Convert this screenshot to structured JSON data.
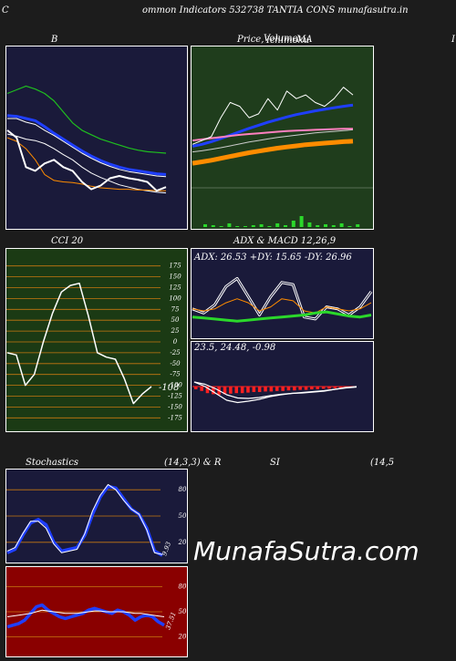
{
  "header": {
    "left_letter": "C",
    "title": "ommon  Indicators 532738  TANTIA CONS munafasutra.in"
  },
  "titles": {
    "bollinger": "B",
    "price_left": "Price, ",
    "price_overlap_a": "Volume",
    "price_overlap_b": "Ichimoku",
    "price_right": "  MA",
    "price_edge": "I",
    "cci": "CCI 20",
    "adx_macd": "ADX  & MACD 12,26,9",
    "stoch_left": "Stochastics",
    "stoch_params": "(14,3,3) & R",
    "rsi": "SI",
    "rsi_params": "(14,5"
  },
  "watermark": "MunafaSutra.com",
  "colors": {
    "navy": "#1a1a3a",
    "green_bg": "#1f3d1c",
    "cci_bg": "#1b3a14",
    "rsi_bg": "#8a0000",
    "orange": "#ff8c00",
    "blue": "#1f3fff",
    "bright_green": "#2bd82b",
    "red": "#ff2020"
  },
  "chart_data": [
    {
      "type": "line",
      "name": "bollinger",
      "title": "B",
      "series": [
        {
          "color": "#1fbf1f",
          "values": [
            78,
            78.5,
            79,
            78.6,
            78,
            77,
            75.5,
            74,
            73,
            72.4,
            71.8,
            71.4,
            71,
            70.6,
            70.3,
            70.1,
            70,
            69.9
          ]
        },
        {
          "color": "#1f3fff",
          "values": [
            75,
            74.9,
            74.6,
            74.3,
            73.5,
            72.6,
            71.8,
            71,
            70.2,
            69.5,
            68.9,
            68.4,
            68,
            67.7,
            67.5,
            67.3,
            67.1,
            67
          ]
        },
        {
          "color": "#ffffff",
          "values": [
            74.6,
            74.6,
            74.1,
            73.8,
            73,
            72.3,
            71.5,
            70.7,
            69.9,
            69.2,
            68.6,
            68.1,
            67.7,
            67.4,
            67.2,
            67,
            66.8,
            66.7
          ]
        },
        {
          "color": "#ffffff",
          "values": [
            72.5,
            72.2,
            71.8,
            71.6,
            71.2,
            70.5,
            69.7,
            69,
            68,
            67.2,
            66.6,
            66.1,
            65.6,
            65.3,
            65,
            64.8,
            64.6,
            64.5
          ]
        },
        {
          "color": "#ff8c00",
          "values": [
            72,
            71.5,
            70.5,
            69,
            67,
            66.2,
            66,
            65.9,
            65.7,
            65.4,
            65.2,
            65.1,
            65,
            65,
            64.9,
            64.9,
            64.8,
            64.8
          ]
        },
        {
          "color": "#ffffff",
          "values": [
            73,
            72,
            68,
            67.5,
            68.5,
            69,
            68,
            67.5,
            66,
            65,
            65.5,
            66.5,
            66.8,
            66.5,
            66.3,
            66,
            64.8,
            65.3
          ]
        }
      ]
    },
    {
      "type": "line",
      "name": "price_ma",
      "series": [
        {
          "color": "#ff8c00",
          "values": [
            10,
            10.4,
            10.8,
            11.3,
            11.8,
            12.3,
            12.8,
            13.2,
            13.6,
            14,
            14.3,
            14.6,
            14.9,
            15.1,
            15.3,
            15.5,
            15.7,
            15.8
          ]
        },
        {
          "color": "#1f3fff",
          "values": [
            14.5,
            15,
            15.7,
            16.5,
            17.4,
            18.3,
            19.2,
            20,
            20.8,
            21.5,
            22.2,
            22.8,
            23.3,
            23.8,
            24.2,
            24.6,
            25,
            25.3
          ]
        },
        {
          "color": "#cccccc",
          "values": [
            13,
            13.3,
            13.7,
            14.1,
            14.6,
            15.1,
            15.6,
            16,
            16.4,
            16.8,
            17.1,
            17.4,
            17.7,
            18,
            18.2,
            18.4,
            18.6,
            18.8
          ]
        },
        {
          "color": "#ff80c0",
          "values": [
            16,
            16.3,
            16.6,
            16.9,
            17.2,
            17.5,
            17.7,
            17.9,
            18.1,
            18.3,
            18.5,
            18.6,
            18.7,
            18.8,
            18.9,
            19,
            19.1,
            19.1
          ]
        },
        {
          "color": "#ffffff",
          "values": [
            15,
            16,
            17,
            22,
            26,
            25,
            22,
            23,
            27,
            24,
            29,
            27,
            28,
            26,
            25,
            27,
            30,
            28
          ]
        }
      ],
      "volume": [
        3,
        2,
        1,
        4,
        1,
        1,
        2,
        3,
        1,
        4,
        2,
        7,
        12,
        5,
        2,
        3,
        2,
        4,
        1,
        3
      ]
    },
    {
      "type": "line",
      "name": "cci",
      "title": "CCI 20",
      "yticks": [
        175,
        150,
        125,
        100,
        75,
        50,
        25,
        0,
        -25,
        -50,
        -75,
        -100,
        -125,
        -150,
        -175
      ],
      "ylim": [
        -187,
        187
      ],
      "series": [
        {
          "color": "#ffffff",
          "values": [
            -25,
            -30,
            -100,
            -75,
            0,
            65,
            115,
            130,
            135,
            60,
            -25,
            -35,
            -40,
            -85,
            -142,
            -120,
            -103
          ]
        }
      ],
      "last_label": "-108"
    },
    {
      "type": "line",
      "name": "adx",
      "title": "ADX  & MACD 12,26,9",
      "readout": "ADX: 26.53  +DY: 15.65  -DY: 26.96",
      "series": [
        {
          "color": "#ffffff",
          "values": [
            28,
            24,
            32,
            50,
            58,
            40,
            22,
            40,
            54,
            52,
            20,
            18,
            30,
            28,
            22,
            30,
            45
          ]
        },
        {
          "color": "#ff8c00",
          "values": [
            28,
            26,
            28,
            34,
            38,
            34,
            26,
            30,
            38,
            36,
            26,
            24,
            30,
            28,
            26,
            28,
            34
          ]
        },
        {
          "color": "#2bd82b",
          "values": [
            20,
            19,
            18,
            17,
            16,
            17,
            18,
            19,
            20,
            21,
            22,
            24,
            25,
            23,
            21,
            20,
            22
          ]
        }
      ]
    },
    {
      "type": "bar",
      "name": "macd",
      "readout": "23.5,  24.48,  -0.98",
      "histogram": [
        -0.5,
        -0.8,
        -1.2,
        -1.4,
        -1.5,
        -1.4,
        -1.3,
        -1.2,
        -1.2,
        -1.1,
        -1,
        -1,
        -0.9,
        -0.9,
        -0.8,
        -0.8,
        -0.7,
        -0.7,
        -0.6,
        -0.6,
        -0.5,
        -0.5,
        -0.4,
        -0.4,
        -0.3,
        -0.3,
        -0.3,
        -0.2
      ],
      "series": [
        {
          "color": "#ffffff",
          "values": [
            0,
            -1,
            -2.5,
            -4,
            -4.5,
            -4.2,
            -3.8,
            -3.2,
            -2.8,
            -2.5,
            -2.4,
            -2.2,
            -2,
            -1.6,
            -1.2,
            -1
          ]
        },
        {
          "color": "#ffffff",
          "values": [
            0,
            -0.5,
            -1.5,
            -2.8,
            -3.5,
            -3.6,
            -3.4,
            -3,
            -2.7,
            -2.5,
            -2.3,
            -2.1,
            -1.9,
            -1.6,
            -1.3,
            -1.1
          ]
        }
      ]
    },
    {
      "type": "line",
      "name": "stochastics",
      "yticks": [
        80,
        50,
        20
      ],
      "ylim": [
        0,
        100
      ],
      "series": [
        {
          "color": "#1f3fff",
          "values": [
            8,
            12,
            28,
            42,
            46,
            40,
            20,
            10,
            12,
            14,
            28,
            52,
            72,
            84,
            82,
            70,
            58,
            52,
            36,
            10,
            5
          ]
        },
        {
          "color": "#ffffff",
          "values": [
            10,
            14,
            30,
            44,
            44,
            36,
            18,
            8,
            10,
            12,
            30,
            56,
            74,
            86,
            80,
            68,
            58,
            52,
            34,
            8,
            6
          ]
        }
      ],
      "last_label": "9.93"
    },
    {
      "type": "line",
      "name": "rsi",
      "yticks": [
        80,
        50,
        20
      ],
      "ylim": [
        0,
        100
      ],
      "series": [
        {
          "color": "#1f3fff",
          "values": [
            32,
            34,
            36,
            40,
            48,
            56,
            58,
            52,
            48,
            44,
            42,
            44,
            46,
            48,
            52,
            54,
            52,
            50,
            48,
            52,
            50,
            46,
            40,
            44,
            46,
            44,
            38,
            34
          ]
        },
        {
          "color": "#ffffff",
          "values": [
            44,
            45,
            46,
            47,
            48,
            50,
            52,
            51,
            50,
            49,
            48,
            48,
            48,
            49,
            50,
            51,
            51,
            50,
            50,
            50,
            50,
            49,
            48,
            48,
            47,
            46,
            45,
            44
          ]
        }
      ],
      "last_label": "37.51"
    }
  ]
}
